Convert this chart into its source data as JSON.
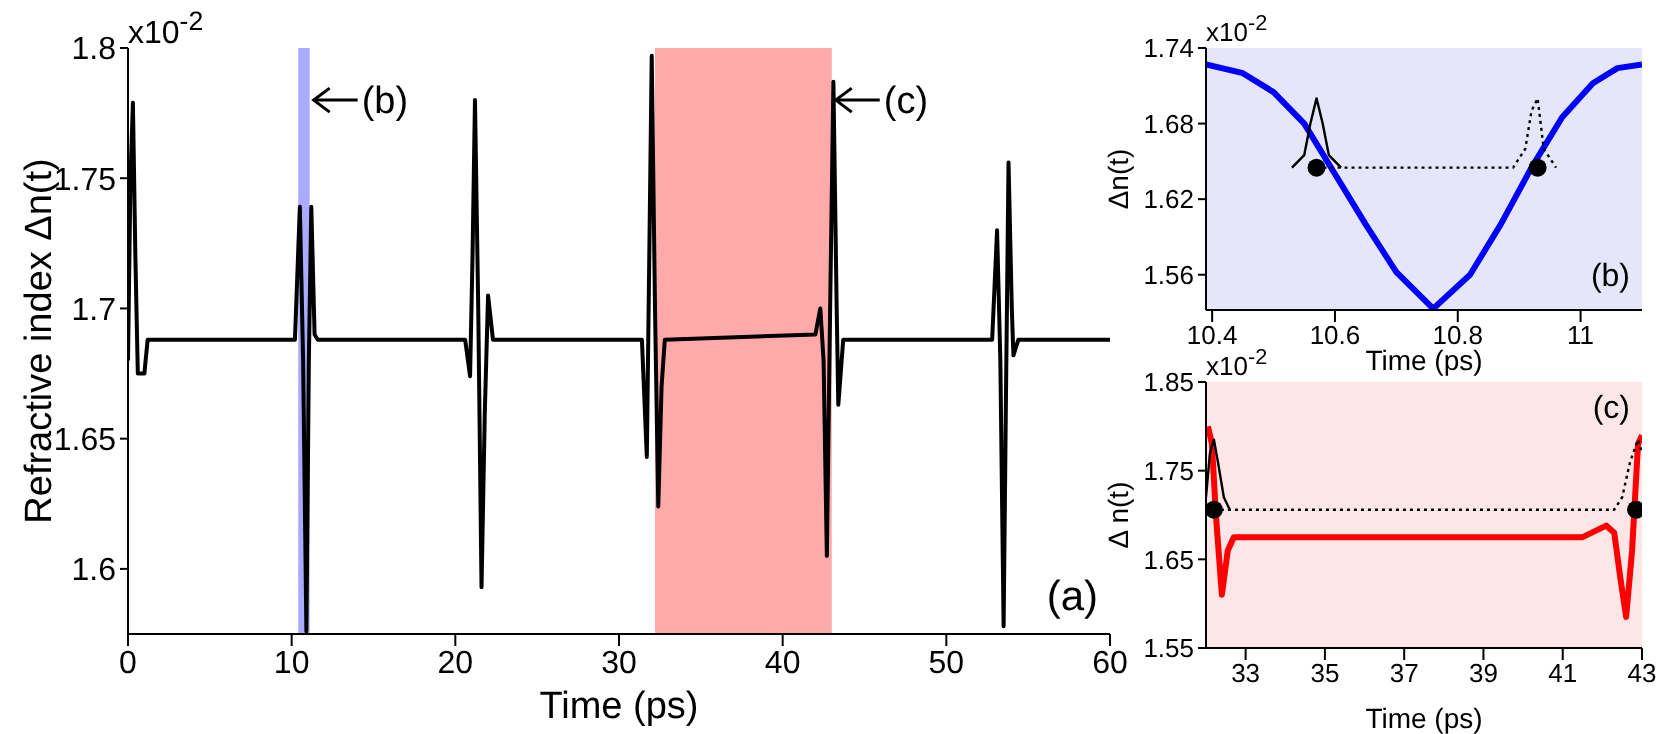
{
  "chart_data": [
    {
      "type": "line",
      "xlabel": "Time (ps)",
      "ylabel": "Refractive index Δn(t)",
      "xlim": [
        0,
        60
      ],
      "xticks": [
        0,
        10,
        20,
        30,
        40,
        50,
        60
      ],
      "ylim": [
        1.575,
        1.8
      ],
      "yticks": [
        1.6,
        1.65,
        1.7,
        1.75,
        1.8
      ],
      "bands": [
        {
          "axis": "x",
          "from": 10.4,
          "to": 11.1,
          "color": "#aaaaff"
        },
        {
          "axis": "x",
          "from": 32.2,
          "to": 43,
          "color": "#ffaaaa"
        }
      ],
      "annotations": [
        "x10$^{-2}$",
        "(a)",
        {
          "text": "(b)",
          "x": 11.1,
          "y": 1.78
        },
        {
          "text": "(c)",
          "x": 43,
          "y": 1.78
        }
      ],
      "series": [
        {
          "color": "#000000",
          "x": [
            0,
            0.15,
            0.3,
            0.45,
            0.6,
            1.0,
            1.2,
            10.2,
            10.5,
            10.7,
            10.9,
            11.05,
            11.2,
            11.4,
            11.6,
            20.6,
            20.9,
            21.05,
            21.2,
            21.4,
            21.6,
            21.8,
            22.0,
            22.3,
            31.4,
            31.7,
            31.85,
            32.0,
            32.2,
            32.4,
            32.6,
            32.8,
            42.0,
            42.3,
            42.5,
            42.7,
            42.9,
            43.1,
            43.3,
            43.4,
            43.7,
            52.8,
            53.1,
            53.3,
            53.5,
            53.65,
            53.8,
            54.0,
            54.1,
            54.4,
            60
          ],
          "values": [
            1.68,
            1.75,
            1.779,
            1.72,
            1.675,
            1.675,
            1.688,
            1.688,
            1.739,
            1.68,
            1.576,
            1.68,
            1.739,
            1.69,
            1.688,
            1.688,
            1.674,
            1.72,
            1.78,
            1.7,
            1.593,
            1.66,
            1.705,
            1.688,
            1.688,
            1.643,
            1.72,
            1.797,
            1.7,
            1.624,
            1.67,
            1.688,
            1.69,
            1.7,
            1.68,
            1.605,
            1.7,
            1.787,
            1.7,
            1.663,
            1.688,
            1.688,
            1.73,
            1.68,
            1.578,
            1.67,
            1.756,
            1.7,
            1.682,
            1.688,
            1.688
          ]
        }
      ]
    },
    {
      "type": "line",
      "xlabel": "Time (ps)",
      "ylabel": "Δn(t)",
      "xlim": [
        10.39,
        11.1
      ],
      "xticks": [
        10.4,
        10.6,
        10.8,
        11
      ],
      "ylim": [
        1.532,
        1.74
      ],
      "yticks": [
        1.56,
        1.62,
        1.68,
        1.74
      ],
      "bands": [
        {
          "axis": "x",
          "from": 10.39,
          "to": 11.1,
          "color": "#e6e6fa"
        }
      ],
      "annotations": [
        "x10$^{-2}$",
        "(b)"
      ],
      "series": [
        {
          "color": "#0000ff",
          "x": [
            10.39,
            10.45,
            10.5,
            10.55,
            10.6,
            10.65,
            10.7,
            10.76,
            10.82,
            10.87,
            10.92,
            10.97,
            11.02,
            11.06,
            11.1
          ],
          "values": [
            1.727,
            1.72,
            1.705,
            1.68,
            1.64,
            1.6,
            1.562,
            1.533,
            1.56,
            1.6,
            1.645,
            1.685,
            1.712,
            1.724,
            1.727
          ]
        },
        {
          "color": "#000000",
          "x": [
            10.53,
            10.55,
            10.56,
            10.57,
            10.58,
            10.59,
            10.61
          ],
          "values": [
            1.645,
            1.655,
            1.68,
            1.7,
            1.68,
            1.655,
            1.645
          ]
        },
        {
          "color": "#000000",
          "line_style": "dotted",
          "x": [
            10.57,
            10.89,
            10.91,
            10.92,
            10.93,
            10.94,
            10.96
          ],
          "values": [
            1.645,
            1.645,
            1.66,
            1.69,
            1.7,
            1.66,
            1.645
          ]
        },
        {
          "type": "scatter",
          "marker": "circle",
          "color": "#000000",
          "x": [
            10.57,
            10.93
          ],
          "values": [
            1.645,
            1.645
          ]
        }
      ]
    },
    {
      "type": "line",
      "xlabel": "Time (ps)",
      "ylabel": "Δ n(t)",
      "xlim": [
        32,
        43
      ],
      "xticks": [
        33,
        35,
        37,
        39,
        41,
        43
      ],
      "ylim": [
        1.55,
        1.85
      ],
      "yticks": [
        1.55,
        1.65,
        1.75,
        1.85
      ],
      "bands": [
        {
          "axis": "x",
          "from": 32,
          "to": 43,
          "color": "#fde6e6"
        }
      ],
      "annotations": [
        "x10$^{-2}$",
        "(c)"
      ],
      "series": [
        {
          "color": "#ff0000",
          "x": [
            32.05,
            32.15,
            32.25,
            32.4,
            32.55,
            32.7,
            41.5,
            42.1,
            42.3,
            42.45,
            42.6,
            42.75,
            42.9,
            43
          ],
          "values": [
            1.8,
            1.78,
            1.7,
            1.61,
            1.66,
            1.675,
            1.675,
            1.688,
            1.68,
            1.63,
            1.585,
            1.66,
            1.78,
            1.79
          ]
        },
        {
          "color": "#000000",
          "x": [
            32,
            32.1,
            32.2,
            32.3,
            32.45,
            32.6
          ],
          "values": [
            1.72,
            1.77,
            1.785,
            1.76,
            1.72,
            1.706
          ]
        },
        {
          "color": "#000000",
          "line_style": "dotted",
          "x": [
            32.2,
            42.3,
            42.5,
            42.7,
            42.9,
            43
          ],
          "values": [
            1.706,
            1.706,
            1.72,
            1.76,
            1.785,
            1.77
          ]
        },
        {
          "type": "scatter",
          "marker": "circle",
          "color": "#000000",
          "x": [
            32.2,
            42.85
          ],
          "values": [
            1.706,
            1.706
          ]
        }
      ]
    }
  ]
}
